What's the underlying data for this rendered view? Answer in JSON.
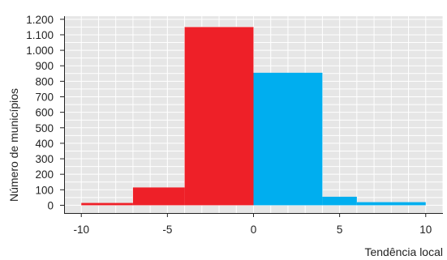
{
  "chart_data": {
    "type": "bar",
    "title": "",
    "xlabel": "Tendência local",
    "ylabel": "Número de municípios",
    "xlim": [
      -11,
      11
    ],
    "ylim": [
      -50,
      1220
    ],
    "x_ticks": [
      -10,
      -5,
      0,
      5,
      10
    ],
    "x_tick_labels": [
      "-10",
      "-5",
      "0",
      "5",
      "10"
    ],
    "y_ticks": [
      0,
      100,
      200,
      300,
      400,
      500,
      600,
      700,
      800,
      900,
      1000,
      1100,
      1200
    ],
    "y_tick_labels": [
      "0",
      "100",
      "200",
      "300",
      "400",
      "500",
      "600",
      "700",
      "800",
      "900",
      "1.000",
      "1.100",
      "1.200"
    ],
    "grid": true,
    "colors": {
      "negative": "#ee2028",
      "positive": "#00aeef",
      "plot_bg": "#e6e6e6",
      "grid": "#ffffff"
    },
    "bins": [
      {
        "x0": -10,
        "x1": -7,
        "value": 15,
        "sign": "negative"
      },
      {
        "x0": -7,
        "x1": -4,
        "value": 115,
        "sign": "negative"
      },
      {
        "x0": -4,
        "x1": 0,
        "value": 1150,
        "sign": "negative"
      },
      {
        "x0": 0,
        "x1": 4,
        "value": 855,
        "sign": "positive"
      },
      {
        "x0": 4,
        "x1": 6,
        "value": 55,
        "sign": "positive"
      },
      {
        "x0": 6,
        "x1": 10,
        "value": 20,
        "sign": "positive"
      }
    ]
  }
}
